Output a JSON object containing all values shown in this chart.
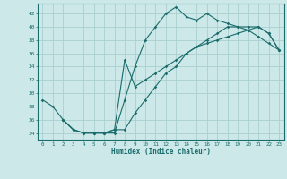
{
  "xlabel": "Humidex (Indice chaleur)",
  "background_color": "#cce8e8",
  "grid_color": "#aacfcf",
  "line_color": "#1a6b6b",
  "xlim": [
    -0.5,
    23.5
  ],
  "ylim": [
    23,
    43.5
  ],
  "yticks": [
    24,
    26,
    28,
    30,
    32,
    34,
    36,
    38,
    40,
    42
  ],
  "xticks": [
    0,
    1,
    2,
    3,
    4,
    5,
    6,
    7,
    8,
    9,
    10,
    11,
    12,
    13,
    14,
    15,
    16,
    17,
    18,
    19,
    20,
    21,
    22,
    23
  ],
  "line1_x": [
    0,
    1,
    2,
    3,
    4,
    5,
    6,
    7,
    8,
    9,
    10,
    11,
    12,
    13,
    14,
    15,
    16,
    17,
    18,
    19,
    20,
    21,
    22,
    23
  ],
  "line1_y": [
    29,
    28,
    26,
    24.5,
    24,
    24,
    24,
    24,
    29,
    34,
    38,
    40,
    42,
    43,
    41.5,
    41,
    42,
    41,
    40.5,
    40,
    39.5,
    38.5,
    37.5,
    36.5
  ],
  "line2_x": [
    2,
    3,
    4,
    5,
    6,
    7,
    8,
    9,
    10,
    11,
    12,
    13,
    14,
    15,
    16,
    17,
    18,
    19,
    20,
    21,
    22,
    23
  ],
  "line2_y": [
    26,
    24.5,
    24,
    24,
    24,
    24.5,
    35,
    31,
    32,
    33,
    34,
    35,
    36,
    37,
    38,
    39,
    40,
    40,
    40,
    40,
    39,
    36.5
  ],
  "line3_x": [
    2,
    3,
    4,
    5,
    6,
    7,
    8,
    9,
    10,
    11,
    12,
    13,
    14,
    15,
    16,
    17,
    18,
    19,
    20,
    21,
    22,
    23
  ],
  "line3_y": [
    26,
    24.5,
    24,
    24,
    24,
    24.5,
    24.5,
    27,
    29,
    31,
    33,
    34,
    36,
    37,
    37.5,
    38,
    38.5,
    39,
    39.5,
    40,
    39,
    36.5
  ]
}
